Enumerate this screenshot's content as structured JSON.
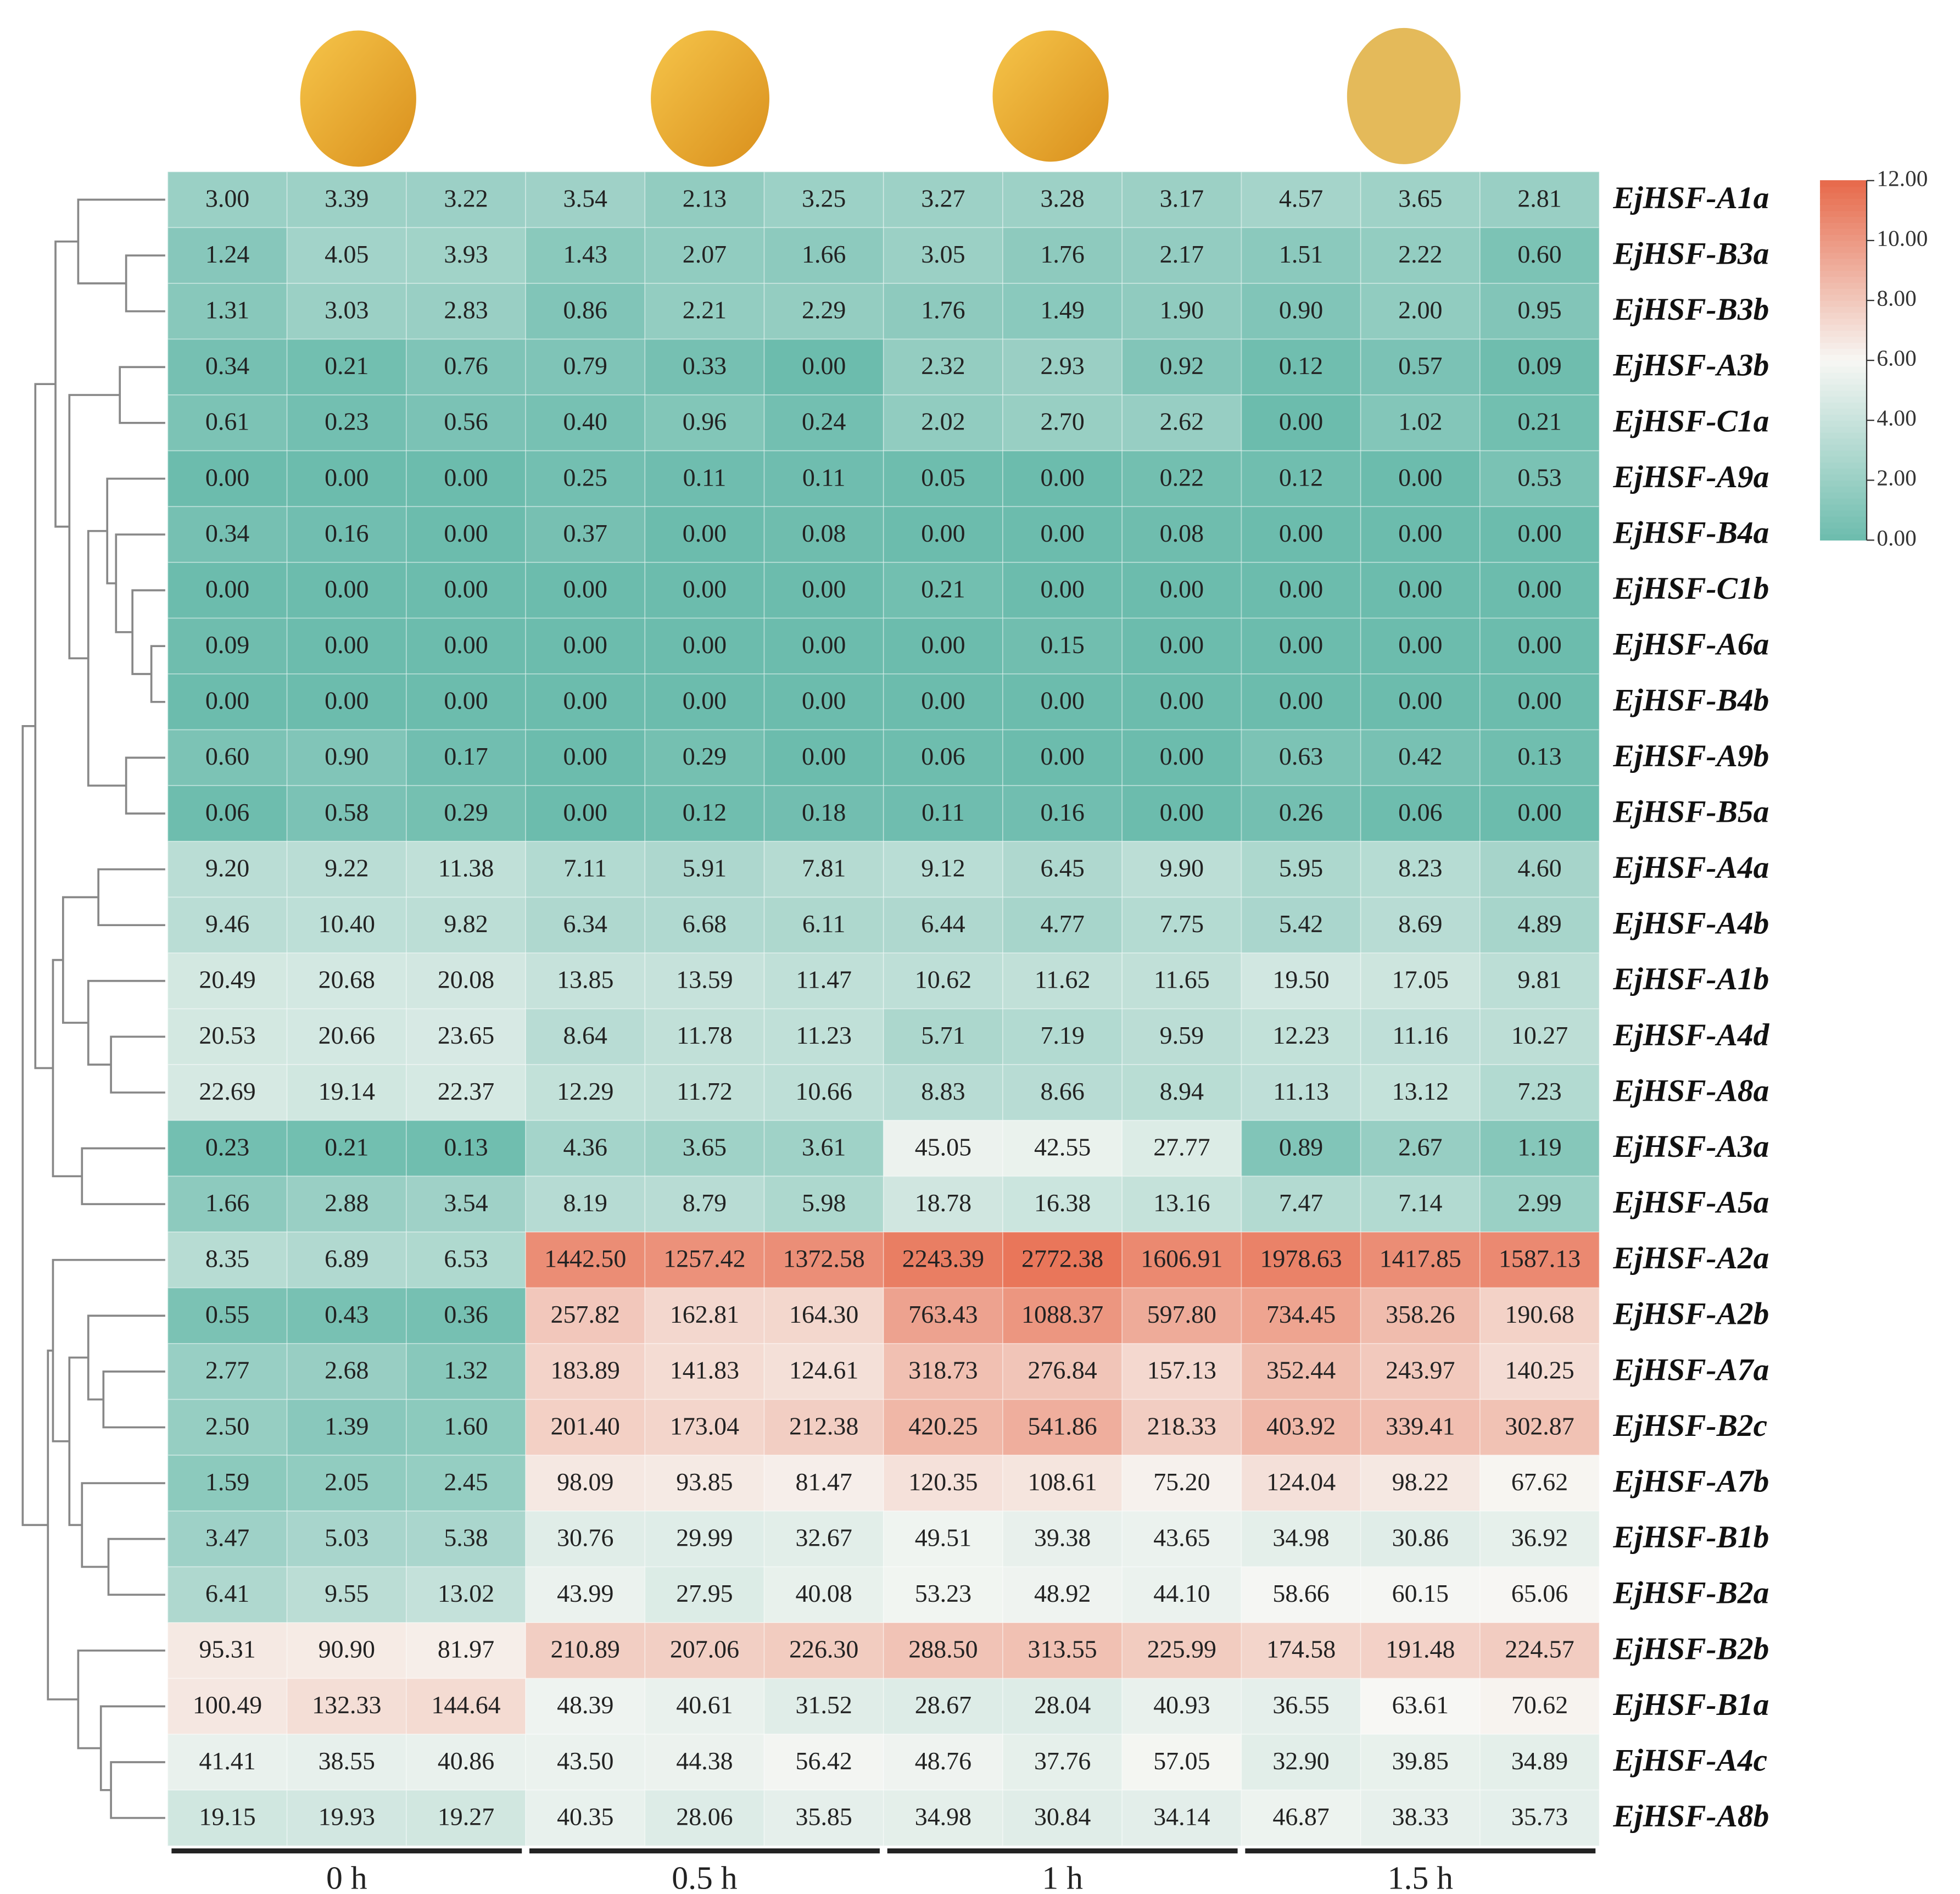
{
  "chart_data": {
    "type": "heatmap",
    "log_scale": true,
    "colors": [
      "#6cbcad",
      "#f7f7f4",
      "#e7694a"
    ],
    "clim": [
      0,
      12
    ],
    "cticks": [
      {
        "value": 0,
        "label": "0.00"
      },
      {
        "value": 2,
        "label": "2.00"
      },
      {
        "value": 4,
        "label": "4.00"
      },
      {
        "value": 6,
        "label": "6.00"
      },
      {
        "value": 8,
        "label": "8.00"
      },
      {
        "value": 10,
        "label": "10.00"
      },
      {
        "value": 12,
        "label": "12.00"
      }
    ],
    "x_groups": [
      "0 h",
      "0.5 h",
      "1 h",
      "1.5 h"
    ],
    "rows": [
      "EjHSF-A1a",
      "EjHSF-B3a",
      "EjHSF-B3b",
      "EjHSF-A3b",
      "EjHSF-C1a",
      "EjHSF-A9a",
      "EjHSF-B4a",
      "EjHSF-C1b",
      "EjHSF-A6a",
      "EjHSF-B4b",
      "EjHSF-A9b",
      "EjHSF-B5a",
      "EjHSF-A4a",
      "EjHSF-A4b",
      "EjHSF-A1b",
      "EjHSF-A4d",
      "EjHSF-A8a",
      "EjHSF-A3a",
      "EjHSF-A5a",
      "EjHSF-A2a",
      "EjHSF-A2b",
      "EjHSF-A7a",
      "EjHSF-B2c",
      "EjHSF-A7b",
      "EjHSF-B1b",
      "EjHSF-B2a",
      "EjHSF-B2b",
      "EjHSF-B1a",
      "EjHSF-A4c",
      "EjHSF-A8b"
    ],
    "values": [
      [
        3.0,
        3.39,
        3.22,
        3.54,
        2.13,
        3.25,
        3.27,
        3.28,
        3.17,
        4.57,
        3.65,
        2.81
      ],
      [
        1.24,
        4.05,
        3.93,
        1.43,
        2.07,
        1.66,
        3.05,
        1.76,
        2.17,
        1.51,
        2.22,
        0.6
      ],
      [
        1.31,
        3.03,
        2.83,
        0.86,
        2.21,
        2.29,
        1.76,
        1.49,
        1.9,
        0.9,
        2.0,
        0.95
      ],
      [
        0.34,
        0.21,
        0.76,
        0.79,
        0.33,
        0,
        2.32,
        2.93,
        0.92,
        0.12,
        0.57,
        0.09
      ],
      [
        0.61,
        0.23,
        0.56,
        0.4,
        0.96,
        0.24,
        2.02,
        2.7,
        2.62,
        0,
        1.02,
        0.21
      ],
      [
        0,
        0,
        0,
        0.25,
        0.11,
        0.11,
        0.05,
        0,
        0.22,
        0.12,
        0,
        0.53
      ],
      [
        0.34,
        0.16,
        0,
        0.37,
        0,
        0.08,
        0,
        0,
        0.08,
        0,
        0,
        0
      ],
      [
        0,
        0,
        0,
        0,
        0,
        0,
        0.21,
        0,
        0,
        0,
        0,
        0
      ],
      [
        0.09,
        0,
        0,
        0,
        0,
        0,
        0,
        0.15,
        0,
        0,
        0,
        0
      ],
      [
        0,
        0,
        0,
        0,
        0,
        0,
        0,
        0,
        0,
        0,
        0,
        0
      ],
      [
        0.6,
        0.9,
        0.17,
        0,
        0.29,
        0,
        0.06,
        0,
        0,
        0.63,
        0.42,
        0.13
      ],
      [
        0.06,
        0.58,
        0.29,
        0,
        0.12,
        0.18,
        0.11,
        0.16,
        0,
        0.26,
        0.06,
        0
      ],
      [
        9.2,
        9.22,
        11.38,
        7.11,
        5.91,
        7.81,
        9.12,
        6.45,
        9.9,
        5.95,
        8.23,
        4.6
      ],
      [
        9.46,
        10.4,
        9.82,
        6.34,
        6.68,
        6.11,
        6.44,
        4.77,
        7.75,
        5.42,
        8.69,
        4.89
      ],
      [
        20.49,
        20.68,
        20.08,
        13.85,
        13.59,
        11.47,
        10.62,
        11.62,
        11.65,
        19.5,
        17.05,
        9.81
      ],
      [
        20.53,
        20.66,
        23.65,
        8.64,
        11.78,
        11.23,
        5.71,
        7.19,
        9.59,
        12.23,
        11.16,
        10.27
      ],
      [
        22.69,
        19.14,
        22.37,
        12.29,
        11.72,
        10.66,
        8.83,
        8.66,
        8.94,
        11.13,
        13.12,
        7.23
      ],
      [
        0.23,
        0.21,
        0.13,
        4.36,
        3.65,
        3.61,
        45.05,
        42.55,
        27.77,
        0.89,
        2.67,
        1.19
      ],
      [
        1.66,
        2.88,
        3.54,
        8.19,
        8.79,
        5.98,
        18.78,
        16.38,
        13.16,
        7.47,
        7.14,
        2.99
      ],
      [
        8.35,
        6.89,
        6.53,
        1442.5,
        1257.42,
        1372.58,
        2243.39,
        2772.38,
        1606.91,
        1978.63,
        1417.85,
        1587.13
      ],
      [
        0.55,
        0.43,
        0.36,
        257.82,
        162.81,
        164.3,
        763.43,
        1088.37,
        597.8,
        734.45,
        358.26,
        190.68
      ],
      [
        2.77,
        2.68,
        1.32,
        183.89,
        141.83,
        124.61,
        318.73,
        276.84,
        157.13,
        352.44,
        243.97,
        140.25
      ],
      [
        2.5,
        1.39,
        1.6,
        201.4,
        173.04,
        212.38,
        420.25,
        541.86,
        218.33,
        403.92,
        339.41,
        302.87
      ],
      [
        1.59,
        2.05,
        2.45,
        98.09,
        93.85,
        81.47,
        120.35,
        108.61,
        75.2,
        124.04,
        98.22,
        67.62
      ],
      [
        3.47,
        5.03,
        5.38,
        30.76,
        29.99,
        32.67,
        49.51,
        39.38,
        43.65,
        34.98,
        30.86,
        36.92
      ],
      [
        6.41,
        9.55,
        13.02,
        43.99,
        27.95,
        40.08,
        53.23,
        48.92,
        44.1,
        58.66,
        60.15,
        65.06
      ],
      [
        95.31,
        90.9,
        81.97,
        210.89,
        207.06,
        226.3,
        288.5,
        313.55,
        225.99,
        174.58,
        191.48,
        224.57
      ],
      [
        100.49,
        132.33,
        144.64,
        48.39,
        40.61,
        31.52,
        28.67,
        28.04,
        40.93,
        36.55,
        63.61,
        70.62
      ],
      [
        41.41,
        38.55,
        40.86,
        43.5,
        44.38,
        56.42,
        48.76,
        37.76,
        57.05,
        32.9,
        39.85,
        34.89
      ],
      [
        19.15,
        19.93,
        19.27,
        40.35,
        28.06,
        35.85,
        34.98,
        30.84,
        34.14,
        46.87,
        38.33,
        35.73
      ]
    ],
    "value_labels": [
      [
        "3.00",
        "3.39",
        "3.22",
        "3.54",
        "2.13",
        "3.25",
        "3.27",
        "3.28",
        "3.17",
        "4.57",
        "3.65",
        "2.81"
      ],
      [
        "1.24",
        "4.05",
        "3.93",
        "1.43",
        "2.07",
        "1.66",
        "3.05",
        "1.76",
        "2.17",
        "1.51",
        "2.22",
        "0.60"
      ],
      [
        "1.31",
        "3.03",
        "2.83",
        "0.86",
        "2.21",
        "2.29",
        "1.76",
        "1.49",
        "1.90",
        "0.90",
        "2.00",
        "0.95"
      ],
      [
        "0.34",
        "0.21",
        "0.76",
        "0.79",
        "0.33",
        "0.00",
        "2.32",
        "2.93",
        "0.92",
        "0.12",
        "0.57",
        "0.09"
      ],
      [
        "0.61",
        "0.23",
        "0.56",
        "0.40",
        "0.96",
        "0.24",
        "2.02",
        "2.70",
        "2.62",
        "0.00",
        "1.02",
        "0.21"
      ],
      [
        "0.00",
        "0.00",
        "0.00",
        "0.25",
        "0.11",
        "0.11",
        "0.05",
        "0.00",
        "0.22",
        "0.12",
        "0.00",
        "0.53"
      ],
      [
        "0.34",
        "0.16",
        "0.00",
        "0.37",
        "0.00",
        "0.08",
        "0.00",
        "0.00",
        "0.08",
        "0.00",
        "0.00",
        "0.00"
      ],
      [
        "0.00",
        "0.00",
        "0.00",
        "0.00",
        "0.00",
        "0.00",
        "0.21",
        "0.00",
        "0.00",
        "0.00",
        "0.00",
        "0.00"
      ],
      [
        "0.09",
        "0.00",
        "0.00",
        "0.00",
        "0.00",
        "0.00",
        "0.00",
        "0.15",
        "0.00",
        "0.00",
        "0.00",
        "0.00"
      ],
      [
        "0.00",
        "0.00",
        "0.00",
        "0.00",
        "0.00",
        "0.00",
        "0.00",
        "0.00",
        "0.00",
        "0.00",
        "0.00",
        "0.00"
      ],
      [
        "0.60",
        "0.90",
        "0.17",
        "0.00",
        "0.29",
        "0.00",
        "0.06",
        "0.00",
        "0.00",
        "0.63",
        "0.42",
        "0.13"
      ],
      [
        "0.06",
        "0.58",
        "0.29",
        "0.00",
        "0.12",
        "0.18",
        "0.11",
        "0.16",
        "0.00",
        "0.26",
        "0.06",
        "0.00"
      ],
      [
        "9.20",
        "9.22",
        "11.38",
        "7.11",
        "5.91",
        "7.81",
        "9.12",
        "6.45",
        "9.90",
        "5.95",
        "8.23",
        "4.60"
      ],
      [
        "9.46",
        "10.40",
        "9.82",
        "6.34",
        "6.68",
        "6.11",
        "6.44",
        "4.77",
        "7.75",
        "5.42",
        "8.69",
        "4.89"
      ],
      [
        "20.49",
        "20.68",
        "20.08",
        "13.85",
        "13.59",
        "11.47",
        "10.62",
        "11.62",
        "11.65",
        "19.50",
        "17.05",
        "9.81"
      ],
      [
        "20.53",
        "20.66",
        "23.65",
        "8.64",
        "11.78",
        "11.23",
        "5.71",
        "7.19",
        "9.59",
        "12.23",
        "11.16",
        "10.27"
      ],
      [
        "22.69",
        "19.14",
        "22.37",
        "12.29",
        "11.72",
        "10.66",
        "8.83",
        "8.66",
        "8.94",
        "11.13",
        "13.12",
        "7.23"
      ],
      [
        "0.23",
        "0.21",
        "0.13",
        "4.36",
        "3.65",
        "3.61",
        "45.05",
        "42.55",
        "27.77",
        "0.89",
        "2.67",
        "1.19"
      ],
      [
        "1.66",
        "2.88",
        "3.54",
        "8.19",
        "8.79",
        "5.98",
        "18.78",
        "16.38",
        "13.16",
        "7.47",
        "7.14",
        "2.99"
      ],
      [
        "8.35",
        "6.89",
        "6.53",
        "1442.50",
        "1257.42",
        "1372.58",
        "2243.39",
        "2772.38",
        "1606.91",
        "1978.63",
        "1417.85",
        "1587.13"
      ],
      [
        "0.55",
        "0.43",
        "0.36",
        "257.82",
        "162.81",
        "164.30",
        "763.43",
        "1088.37",
        "597.80",
        "734.45",
        "358.26",
        "190.68"
      ],
      [
        "2.77",
        "2.68",
        "1.32",
        "183.89",
        "141.83",
        "124.61",
        "318.73",
        "276.84",
        "157.13",
        "352.44",
        "243.97",
        "140.25"
      ],
      [
        "2.50",
        "1.39",
        "1.60",
        "201.40",
        "173.04",
        "212.38",
        "420.25",
        "541.86",
        "218.33",
        "403.92",
        "339.41",
        "302.87"
      ],
      [
        "1.59",
        "2.05",
        "2.45",
        "98.09",
        "93.85",
        "81.47",
        "120.35",
        "108.61",
        "75.20",
        "124.04",
        "98.22",
        "67.62"
      ],
      [
        "3.47",
        "5.03",
        "5.38",
        "30.76",
        "29.99",
        "32.67",
        "49.51",
        "39.38",
        "43.65",
        "34.98",
        "30.86",
        "36.92"
      ],
      [
        "6.41",
        "9.55",
        "13.02",
        "43.99",
        "27.95",
        "40.08",
        "53.23",
        "48.92",
        "44.10",
        "58.66",
        "60.15",
        "65.06"
      ],
      [
        "95.31",
        "90.90",
        "81.97",
        "210.89",
        "207.06",
        "226.30",
        "288.50",
        "313.55",
        "225.99",
        "174.58",
        "191.48",
        "224.57"
      ],
      [
        "100.49",
        "132.33",
        "144.64",
        "48.39",
        "40.61",
        "31.52",
        "28.67",
        "28.04",
        "40.93",
        "36.55",
        "63.61",
        "70.62"
      ],
      [
        "41.41",
        "38.55",
        "40.86",
        "43.50",
        "44.38",
        "56.42",
        "48.76",
        "37.76",
        "57.05",
        "32.90",
        "39.85",
        "34.89"
      ],
      [
        "19.15",
        "19.93",
        "19.27",
        "40.35",
        "28.06",
        "35.85",
        "34.98",
        "30.84",
        "34.14",
        "46.87",
        "38.33",
        "35.73"
      ]
    ]
  }
}
